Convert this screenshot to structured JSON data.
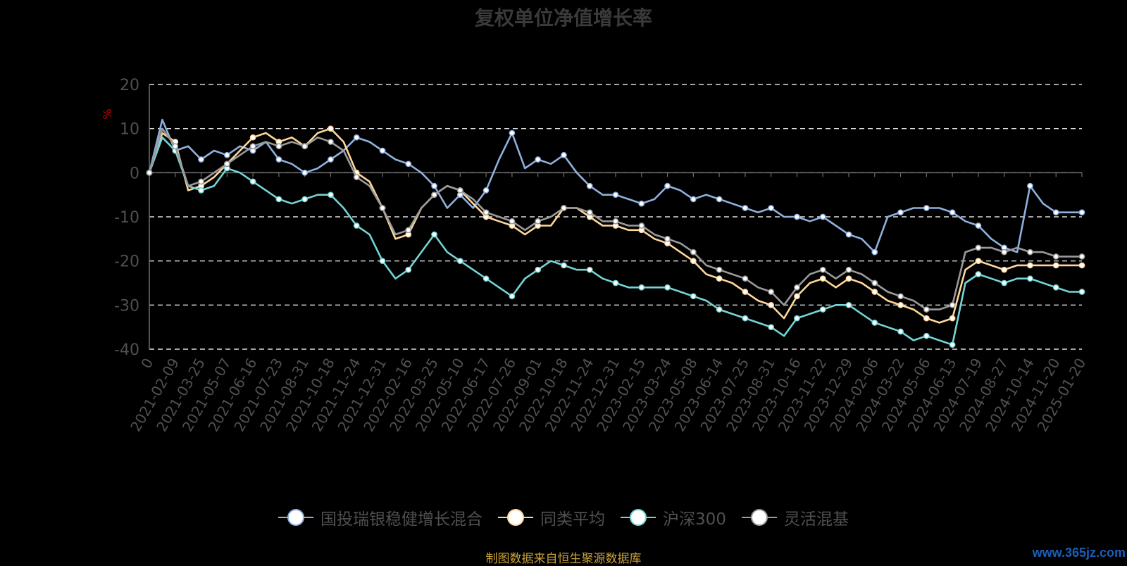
{
  "title": "复权单位净值增长率",
  "source_note": "制图数据来自恒生聚源数据库",
  "watermark": "www.365jz.com",
  "chart_data": {
    "type": "line",
    "title": "复权单位净值增长率",
    "ylabel": "%",
    "ylim": [
      -40,
      20
    ],
    "yticks": [
      20,
      10,
      0,
      -10,
      -20,
      -30,
      -40
    ],
    "grid": true,
    "legend_position": "bottom",
    "x_tick_labels": [
      "0",
      "2021-02-09",
      "2021-03-25",
      "2021-05-07",
      "2021-06-16",
      "2021-07-23",
      "2021-08-31",
      "2021-10-18",
      "2021-11-24",
      "2021-12-31",
      "2022-02-16",
      "2022-03-25",
      "2022-05-10",
      "2022-06-17",
      "2022-07-26",
      "2022-09-01",
      "2022-10-18",
      "2022-11-24",
      "2022-12-31",
      "2023-02-15",
      "2023-03-24",
      "2023-05-08",
      "2023-06-14",
      "2023-07-25",
      "2023-08-31",
      "2023-10-16",
      "2023-11-22",
      "2023-12-29",
      "2024-02-06",
      "2024-03-22",
      "2024-05-06",
      "2024-06-13",
      "2024-07-19",
      "2024-08-27",
      "2024-10-14",
      "2024-11-20",
      "2025-01-20"
    ],
    "x": [
      0,
      0.5,
      1,
      1.5,
      2,
      2.5,
      3,
      3.5,
      4,
      4.5,
      5,
      5.5,
      6,
      6.5,
      7,
      7.5,
      8,
      8.5,
      9,
      9.5,
      10,
      10.5,
      11,
      11.5,
      12,
      12.5,
      13,
      13.5,
      14,
      14.5,
      15,
      15.5,
      16,
      16.5,
      17,
      17.5,
      18,
      18.5,
      19,
      19.5,
      20,
      20.5,
      21,
      21.5,
      22,
      22.5,
      23,
      23.5,
      24,
      24.5,
      25,
      25.5,
      26,
      26.5,
      27,
      27.5,
      28,
      28.5,
      29,
      29.5,
      30,
      30.5,
      31,
      31.5,
      32,
      32.5,
      33,
      33.5,
      34,
      34.5,
      35,
      35.5,
      36
    ],
    "series": [
      {
        "name": "国投瑞银稳健增长混合",
        "color": "#8fb0de",
        "values": [
          0,
          12,
          5,
          6,
          3,
          5,
          4,
          6,
          5,
          7,
          3,
          2,
          0,
          1,
          3,
          5,
          8,
          7,
          5,
          3,
          2,
          0,
          -3,
          -8,
          -5,
          -8,
          -4,
          3,
          9,
          1,
          3,
          2,
          4,
          0,
          -3,
          -5,
          -5,
          -6,
          -7,
          -6,
          -3,
          -4,
          -6,
          -5,
          -6,
          -7,
          -8,
          -9,
          -8,
          -10,
          -10,
          -11,
          -10,
          -12,
          -14,
          -15,
          -18,
          -10,
          -9,
          -8,
          -8,
          -8,
          -9,
          -11,
          -12,
          -15,
          -17,
          -18,
          -3,
          -7,
          -9,
          -9,
          -9
        ]
      },
      {
        "name": "同类平均",
        "color": "#ffd79a",
        "values": [
          0,
          9,
          7,
          -4,
          -3,
          -1,
          2,
          5,
          8,
          9,
          7,
          8,
          6,
          9,
          10,
          7,
          0,
          -2,
          -8,
          -15,
          -14,
          -8,
          -5,
          -3,
          -4,
          -7,
          -10,
          -11,
          -12,
          -14,
          -12,
          -12,
          -8,
          -8,
          -10,
          -12,
          -12,
          -13,
          -13,
          -15,
          -16,
          -18,
          -20,
          -23,
          -24,
          -25,
          -27,
          -29,
          -30,
          -33,
          -28,
          -25,
          -24,
          -26,
          -24,
          -25,
          -27,
          -29,
          -30,
          -31,
          -33,
          -34,
          -33,
          -22,
          -20,
          -21,
          -22,
          -21,
          -21,
          -21,
          -21,
          -21,
          -21
        ]
      },
      {
        "name": "沪深300",
        "color": "#74d5d5",
        "values": [
          0,
          8,
          5,
          -3,
          -4,
          -3,
          1,
          0,
          -2,
          -4,
          -6,
          -7,
          -6,
          -5,
          -5,
          -8,
          -12,
          -14,
          -20,
          -24,
          -22,
          -18,
          -14,
          -18,
          -20,
          -22,
          -24,
          -26,
          -28,
          -24,
          -22,
          -20,
          -21,
          -22,
          -22,
          -24,
          -25,
          -26,
          -26,
          -26,
          -26,
          -27,
          -28,
          -29,
          -31,
          -32,
          -33,
          -34,
          -35,
          -37,
          -33,
          -32,
          -31,
          -30,
          -30,
          -32,
          -34,
          -35,
          -36,
          -38,
          -37,
          -38,
          -39,
          -25,
          -23,
          -24,
          -25,
          -24,
          -24,
          -25,
          -26,
          -27,
          -27
        ]
      },
      {
        "name": "灵活混基",
        "color": "#9a9a9a",
        "values": [
          0,
          10,
          6,
          -3,
          -2,
          0,
          2,
          4,
          6,
          7,
          6,
          7,
          6,
          8,
          7,
          5,
          -1,
          -3,
          -8,
          -14,
          -13,
          -8,
          -5,
          -3,
          -4,
          -6,
          -9,
          -10,
          -11,
          -13,
          -11,
          -10,
          -8,
          -8,
          -9,
          -11,
          -11,
          -12,
          -12,
          -14,
          -15,
          -16,
          -18,
          -21,
          -22,
          -23,
          -24,
          -26,
          -27,
          -30,
          -26,
          -23,
          -22,
          -24,
          -22,
          -23,
          -25,
          -27,
          -28,
          -29,
          -31,
          -31,
          -30,
          -18,
          -17,
          -17,
          -18,
          -17,
          -18,
          -18,
          -19,
          -19,
          -19
        ]
      }
    ]
  }
}
